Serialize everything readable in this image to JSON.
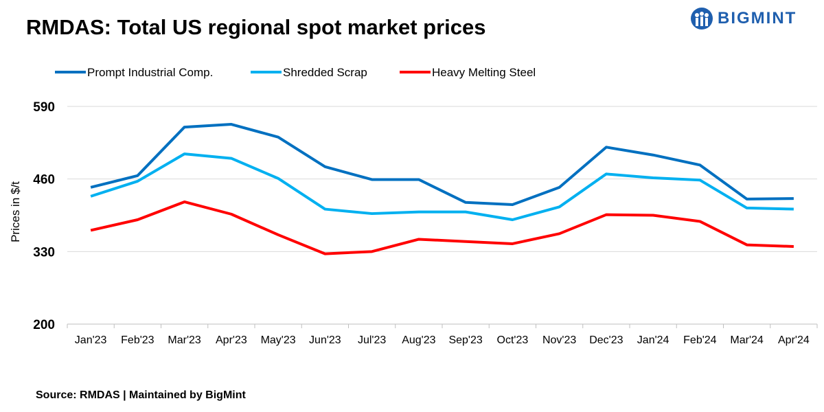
{
  "title": "RMDAS: Total US regional spot market prices",
  "logo": "BIGMINT",
  "source": "Source: RMDAS | Maintained by BigMint",
  "chart_data": {
    "type": "line",
    "title": "RMDAS: Total US regional spot market prices",
    "xlabel": "",
    "ylabel": "Prices in $/t",
    "ylim": [
      200,
      590
    ],
    "yticks": [
      200,
      330,
      460,
      590
    ],
    "grid": true,
    "legend_position": "top",
    "categories": [
      "Jan'23",
      "Feb'23",
      "Mar'23",
      "Apr'23",
      "May'23",
      "Jun'23",
      "Jul'23",
      "Aug'23",
      "Sep'23",
      "Oct'23",
      "Nov'23",
      "Dec'23",
      "Jan'24",
      "Feb'24",
      "Mar'24",
      "Apr'24"
    ],
    "series": [
      {
        "name": "Prompt Industrial Comp.",
        "color": "#0070c0",
        "values": [
          445,
          466,
          553,
          558,
          535,
          482,
          459,
          459,
          418,
          414,
          445,
          517,
          503,
          485,
          424,
          425
        ]
      },
      {
        "name": "Shredded Scrap",
        "color": "#00b0f0",
        "values": [
          429,
          456,
          505,
          497,
          461,
          406,
          398,
          401,
          401,
          387,
          410,
          469,
          462,
          458,
          408,
          406
        ]
      },
      {
        "name": "Heavy Melting Steel",
        "color": "#ff0000",
        "values": [
          368,
          387,
          419,
          397,
          360,
          326,
          330,
          352,
          348,
          344,
          362,
          396,
          395,
          384,
          342,
          339
        ]
      }
    ]
  }
}
